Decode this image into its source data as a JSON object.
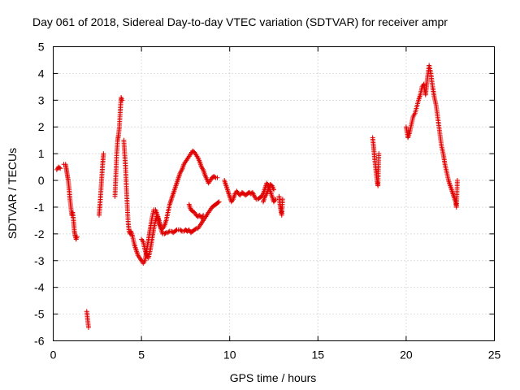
{
  "chart_data": {
    "type": "scatter",
    "title": "Day 061 of 2018, Sidereal Day-to-day VTEC variation (SDTVAR) for receiver ampr",
    "xlabel": "GPS time / hours",
    "ylabel": "SDTVAR / TECUs",
    "xlim": [
      0,
      25
    ],
    "ylim": [
      -6,
      5
    ],
    "xticks": [
      "0",
      "5",
      "10",
      "15",
      "20",
      "25"
    ],
    "yticks": [
      "5",
      "4",
      "3",
      "2",
      "1",
      "0",
      "-1",
      "-2",
      "-3",
      "-4",
      "-5",
      "-6"
    ],
    "grid": true,
    "marker": "+",
    "marker_color": "#e00000",
    "series": [
      {
        "name": "SDTVAR",
        "segments": [
          [
            [
              0.2,
              0.4
            ],
            [
              0.3,
              0.5
            ],
            [
              0.4,
              0.45
            ]
          ],
          [
            [
              0.6,
              0.6
            ],
            [
              0.7,
              0.6
            ],
            [
              0.75,
              0.4
            ],
            [
              0.8,
              0.2
            ],
            [
              0.85,
              0.0
            ],
            [
              0.9,
              -0.3
            ],
            [
              0.95,
              -0.7
            ],
            [
              1.0,
              -1.0
            ],
            [
              1.05,
              -1.3
            ],
            [
              1.1,
              -1.2
            ],
            [
              1.15,
              -1.5
            ],
            [
              1.2,
              -1.9
            ],
            [
              1.25,
              -2.1
            ],
            [
              1.3,
              -2.2
            ],
            [
              1.35,
              -2.1
            ]
          ],
          [
            [
              1.9,
              -4.9
            ],
            [
              1.95,
              -5.2
            ],
            [
              2.0,
              -5.5
            ]
          ],
          [
            [
              2.6,
              -1.3
            ],
            [
              2.65,
              -0.9
            ],
            [
              2.7,
              -0.4
            ],
            [
              2.75,
              0.1
            ],
            [
              2.8,
              0.6
            ],
            [
              2.85,
              1.0
            ]
          ],
          [
            [
              3.5,
              -0.6
            ],
            [
              3.55,
              0.2
            ],
            [
              3.6,
              1.0
            ],
            [
              3.65,
              1.5
            ],
            [
              3.7,
              1.7
            ],
            [
              3.75,
              2.0
            ],
            [
              3.8,
              2.6
            ],
            [
              3.85,
              3.1
            ],
            [
              3.9,
              3.0
            ]
          ],
          [
            [
              4.0,
              1.5
            ],
            [
              4.05,
              1.0
            ],
            [
              4.1,
              0.5
            ],
            [
              4.15,
              -0.3
            ],
            [
              4.2,
              -1.0
            ],
            [
              4.25,
              -1.6
            ],
            [
              4.3,
              -1.9
            ],
            [
              4.35,
              -2.0
            ],
            [
              4.4,
              -1.9
            ],
            [
              4.5,
              -2.1
            ],
            [
              4.6,
              -2.4
            ],
            [
              4.7,
              -2.6
            ],
            [
              4.8,
              -2.8
            ],
            [
              4.9,
              -2.9
            ],
            [
              5.0,
              -3.0
            ],
            [
              5.1,
              -3.1
            ],
            [
              5.2,
              -3.0
            ],
            [
              5.3,
              -2.6
            ],
            [
              5.4,
              -2.2
            ],
            [
              5.5,
              -1.8
            ],
            [
              5.6,
              -1.4
            ],
            [
              5.7,
              -1.1
            ],
            [
              5.8,
              -1.1
            ],
            [
              5.9,
              -1.3
            ],
            [
              6.0,
              -1.6
            ],
            [
              6.1,
              -1.8
            ],
            [
              6.2,
              -1.8
            ],
            [
              6.3,
              -1.7
            ],
            [
              6.4,
              -1.5
            ],
            [
              6.5,
              -1.2
            ],
            [
              6.6,
              -0.9
            ],
            [
              6.7,
              -0.7
            ],
            [
              6.8,
              -0.5
            ],
            [
              6.9,
              -0.3
            ],
            [
              7.0,
              -0.1
            ],
            [
              7.1,
              0.1
            ],
            [
              7.2,
              0.3
            ],
            [
              7.3,
              0.4
            ],
            [
              7.4,
              0.6
            ],
            [
              7.5,
              0.7
            ],
            [
              7.6,
              0.8
            ],
            [
              7.7,
              0.9
            ],
            [
              7.8,
              1.0
            ],
            [
              7.9,
              1.1
            ],
            [
              8.0,
              1.05
            ],
            [
              8.1,
              0.95
            ],
            [
              8.2,
              0.85
            ],
            [
              8.3,
              0.7
            ],
            [
              8.4,
              0.5
            ],
            [
              8.5,
              0.4
            ],
            [
              8.6,
              0.2
            ],
            [
              8.7,
              0.05
            ],
            [
              8.8,
              -0.1
            ],
            [
              8.9,
              0.0
            ],
            [
              9.0,
              0.1
            ],
            [
              9.1,
              0.15
            ],
            [
              9.2,
              0.1
            ],
            [
              9.3,
              0.1
            ]
          ],
          [
            [
              5.0,
              -2.2
            ],
            [
              5.1,
              -2.3
            ],
            [
              5.2,
              -2.6
            ],
            [
              5.3,
              -2.8
            ],
            [
              5.4,
              -2.9
            ],
            [
              5.5,
              -2.6
            ],
            [
              5.6,
              -2.2
            ],
            [
              5.7,
              -1.8
            ],
            [
              5.8,
              -1.5
            ],
            [
              5.9,
              -1.3
            ],
            [
              6.0,
              -1.5
            ],
            [
              6.1,
              -1.8
            ],
            [
              6.2,
              -2.0
            ],
            [
              6.3,
              -2.0
            ],
            [
              6.4,
              -1.95
            ],
            [
              6.5,
              -1.95
            ],
            [
              6.6,
              -1.9
            ],
            [
              6.7,
              -1.9
            ],
            [
              6.8,
              -1.95
            ],
            [
              6.9,
              -1.9
            ],
            [
              7.0,
              -1.85
            ],
            [
              7.1,
              -1.85
            ],
            [
              7.2,
              -1.85
            ],
            [
              7.3,
              -1.9
            ],
            [
              7.4,
              -1.9
            ],
            [
              7.5,
              -1.85
            ],
            [
              7.6,
              -1.9
            ],
            [
              7.7,
              -1.85
            ],
            [
              7.8,
              -1.95
            ],
            [
              7.9,
              -1.9
            ],
            [
              8.0,
              -1.85
            ],
            [
              8.1,
              -1.8
            ],
            [
              8.2,
              -1.8
            ],
            [
              8.3,
              -1.7
            ],
            [
              8.4,
              -1.6
            ],
            [
              8.5,
              -1.5
            ],
            [
              8.6,
              -1.4
            ],
            [
              8.7,
              -1.3
            ],
            [
              8.8,
              -1.2
            ],
            [
              8.9,
              -1.1
            ],
            [
              9.0,
              -1.0
            ],
            [
              9.1,
              -0.95
            ],
            [
              9.2,
              -0.9
            ],
            [
              9.3,
              -0.85
            ],
            [
              9.4,
              -0.8
            ]
          ],
          [
            [
              7.7,
              -0.9
            ],
            [
              7.8,
              -1.1
            ],
            [
              7.9,
              -1.15
            ],
            [
              8.0,
              -1.2
            ],
            [
              8.1,
              -1.3
            ],
            [
              8.2,
              -1.35
            ],
            [
              8.3,
              -1.3
            ],
            [
              8.4,
              -1.4
            ],
            [
              8.5,
              -1.3
            ]
          ],
          [
            [
              9.7,
              0.0
            ],
            [
              9.8,
              -0.2
            ],
            [
              9.9,
              -0.4
            ],
            [
              10.0,
              -0.6
            ],
            [
              10.1,
              -0.8
            ],
            [
              10.2,
              -0.7
            ],
            [
              10.3,
              -0.5
            ],
            [
              10.4,
              -0.4
            ],
            [
              10.5,
              -0.5
            ],
            [
              10.6,
              -0.55
            ],
            [
              10.7,
              -0.45
            ],
            [
              10.8,
              -0.5
            ],
            [
              10.9,
              -0.55
            ],
            [
              11.0,
              -0.5
            ],
            [
              11.1,
              -0.45
            ],
            [
              11.2,
              -0.5
            ],
            [
              11.3,
              -0.45
            ],
            [
              11.4,
              -0.6
            ],
            [
              11.5,
              -0.7
            ],
            [
              11.6,
              -0.7
            ],
            [
              11.7,
              -0.65
            ],
            [
              11.8,
              -0.6
            ],
            [
              11.9,
              -0.5
            ],
            [
              12.0,
              -0.3
            ],
            [
              12.1,
              -0.1
            ],
            [
              12.2,
              -0.2
            ],
            [
              12.3,
              -0.4
            ],
            [
              12.4,
              -0.6
            ],
            [
              12.5,
              -0.8
            ],
            [
              12.6,
              -0.7
            ]
          ],
          [
            [
              11.9,
              -0.8
            ],
            [
              12.0,
              -0.6
            ],
            [
              12.1,
              -0.5
            ],
            [
              12.2,
              -0.3
            ],
            [
              12.3,
              -0.15
            ],
            [
              12.4,
              -0.2
            ],
            [
              12.5,
              -0.35
            ]
          ],
          [
            [
              12.8,
              -0.6
            ],
            [
              12.85,
              -0.9
            ],
            [
              12.9,
              -1.1
            ],
            [
              12.95,
              -1.3
            ],
            [
              13.0,
              -0.7
            ]
          ],
          [
            [
              18.1,
              1.6
            ],
            [
              18.15,
              1.3
            ],
            [
              18.2,
              0.9
            ],
            [
              18.25,
              0.6
            ],
            [
              18.3,
              0.3
            ],
            [
              18.35,
              0.0
            ],
            [
              18.4,
              -0.2
            ],
            [
              18.45,
              1.0
            ]
          ],
          [
            [
              20.0,
              2.0
            ],
            [
              20.1,
              1.6
            ],
            [
              20.2,
              1.8
            ],
            [
              20.3,
              2.1
            ],
            [
              20.4,
              2.4
            ],
            [
              20.5,
              2.5
            ],
            [
              20.7,
              3.0
            ],
            [
              20.8,
              3.2
            ],
            [
              20.9,
              3.5
            ],
            [
              21.0,
              3.6
            ],
            [
              21.1,
              3.2
            ],
            [
              21.2,
              3.8
            ],
            [
              21.3,
              4.3
            ],
            [
              21.4,
              4.0
            ],
            [
              21.5,
              3.5
            ],
            [
              21.6,
              3.1
            ],
            [
              21.7,
              2.8
            ],
            [
              21.8,
              2.3
            ],
            [
              21.9,
              1.8
            ],
            [
              22.0,
              1.3
            ],
            [
              22.1,
              1.0
            ],
            [
              22.2,
              0.6
            ],
            [
              22.3,
              0.3
            ],
            [
              22.4,
              0.0
            ],
            [
              22.5,
              -0.2
            ],
            [
              22.6,
              -0.4
            ],
            [
              22.7,
              -0.6
            ],
            [
              22.8,
              -0.8
            ],
            [
              22.85,
              -1.0
            ],
            [
              22.9,
              0.0
            ]
          ]
        ]
      }
    ]
  }
}
